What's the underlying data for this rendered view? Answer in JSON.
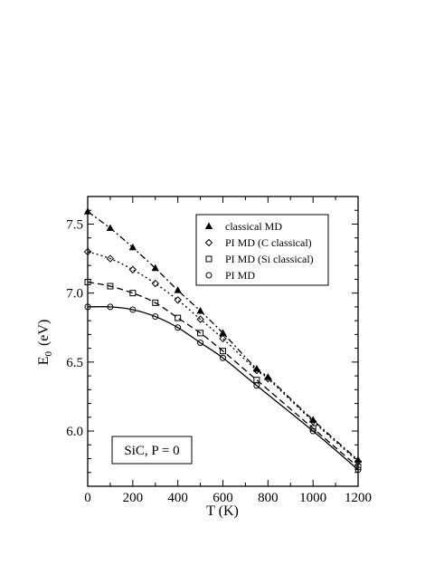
{
  "chart_data": {
    "type": "line",
    "title": "",
    "xlabel": "T  (K)",
    "ylabel_main": "E",
    "ylabel_sub": "0",
    "ylabel_unit": "(eV)",
    "xlim": [
      0,
      1200
    ],
    "ylim": [
      5.6,
      7.7
    ],
    "xticks": [
      0,
      200,
      400,
      600,
      800,
      1000,
      1200
    ],
    "xtick_labels": [
      "0",
      "200",
      "400",
      "600",
      "800",
      "1000",
      "1200"
    ],
    "yticks": [
      6.0,
      6.5,
      7.0,
      7.5
    ],
    "ytick_labels": [
      "6.0",
      "6.5",
      "7.0",
      "7.5"
    ],
    "grid": false,
    "legend_position": "top-right",
    "annotation": "SiC, P = 0",
    "series": [
      {
        "name": "classical MD",
        "marker": "triangle",
        "linestyle": "dash-dot",
        "points": [
          [
            0,
            7.59
          ],
          [
            100,
            7.47
          ],
          [
            200,
            7.33
          ],
          [
            300,
            7.18
          ],
          [
            400,
            7.02
          ],
          [
            500,
            6.87
          ],
          [
            600,
            6.71
          ],
          [
            750,
            6.45
          ],
          [
            800,
            6.39
          ],
          [
            1000,
            6.08
          ],
          [
            1200,
            5.79
          ]
        ]
      },
      {
        "name": "PI MD (C classical)",
        "marker": "diamond",
        "linestyle": "dotted",
        "points": [
          [
            0,
            7.3
          ],
          [
            100,
            7.25
          ],
          [
            200,
            7.17
          ],
          [
            300,
            7.07
          ],
          [
            400,
            6.95
          ],
          [
            500,
            6.81
          ],
          [
            600,
            6.67
          ],
          [
            750,
            6.44
          ],
          [
            800,
            6.38
          ],
          [
            1000,
            6.07
          ],
          [
            1200,
            5.78
          ]
        ]
      },
      {
        "name": "PI MD (Si classical)",
        "marker": "square",
        "linestyle": "dashed",
        "points": [
          [
            0,
            7.08
          ],
          [
            100,
            7.05
          ],
          [
            200,
            7.0
          ],
          [
            300,
            6.93
          ],
          [
            400,
            6.82
          ],
          [
            500,
            6.71
          ],
          [
            600,
            6.58
          ],
          [
            750,
            6.37
          ],
          [
            1000,
            6.02
          ],
          [
            1200,
            5.74
          ]
        ]
      },
      {
        "name": "PI MD",
        "marker": "circle",
        "linestyle": "solid",
        "points": [
          [
            0,
            6.9
          ],
          [
            100,
            6.9
          ],
          [
            200,
            6.88
          ],
          [
            300,
            6.83
          ],
          [
            400,
            6.75
          ],
          [
            500,
            6.64
          ],
          [
            600,
            6.53
          ],
          [
            750,
            6.33
          ],
          [
            1000,
            6.0
          ],
          [
            1200,
            5.72
          ]
        ]
      }
    ]
  }
}
